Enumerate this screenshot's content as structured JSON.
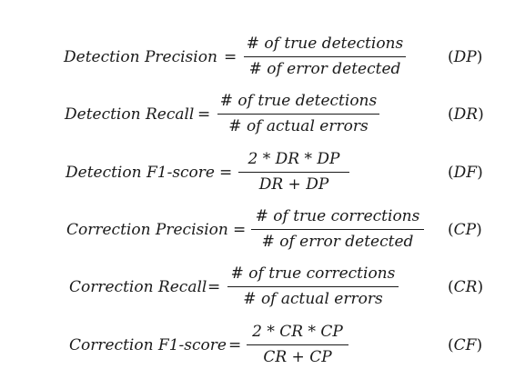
{
  "equations": [
    {
      "lhs": "Detection Precision",
      "numerator": "# of true detections",
      "denominator": "# of error detected",
      "label": "DP"
    },
    {
      "lhs": "Detection Recall",
      "numerator": "# of true detections",
      "denominator": "# of actual errors",
      "label": "DR"
    },
    {
      "lhs": "Detection F1-score",
      "numerator": "2 * DR * DP",
      "denominator": "DR + DP",
      "label": "DF"
    },
    {
      "lhs": "Correction Precision",
      "numerator": "# of true corrections",
      "denominator": "# of error detected",
      "label": "CP"
    },
    {
      "lhs": "Correction Recall",
      "numerator": "# of true corrections",
      "denominator": "# of actual errors",
      "label": "CR"
    },
    {
      "lhs": "Correction F1-score",
      "numerator": "2 * CR * CP",
      "denominator": "CR + CP",
      "label": "CF"
    }
  ],
  "symbols": {
    "equals": "=",
    "open_paren": "(",
    "close_paren": ")"
  }
}
